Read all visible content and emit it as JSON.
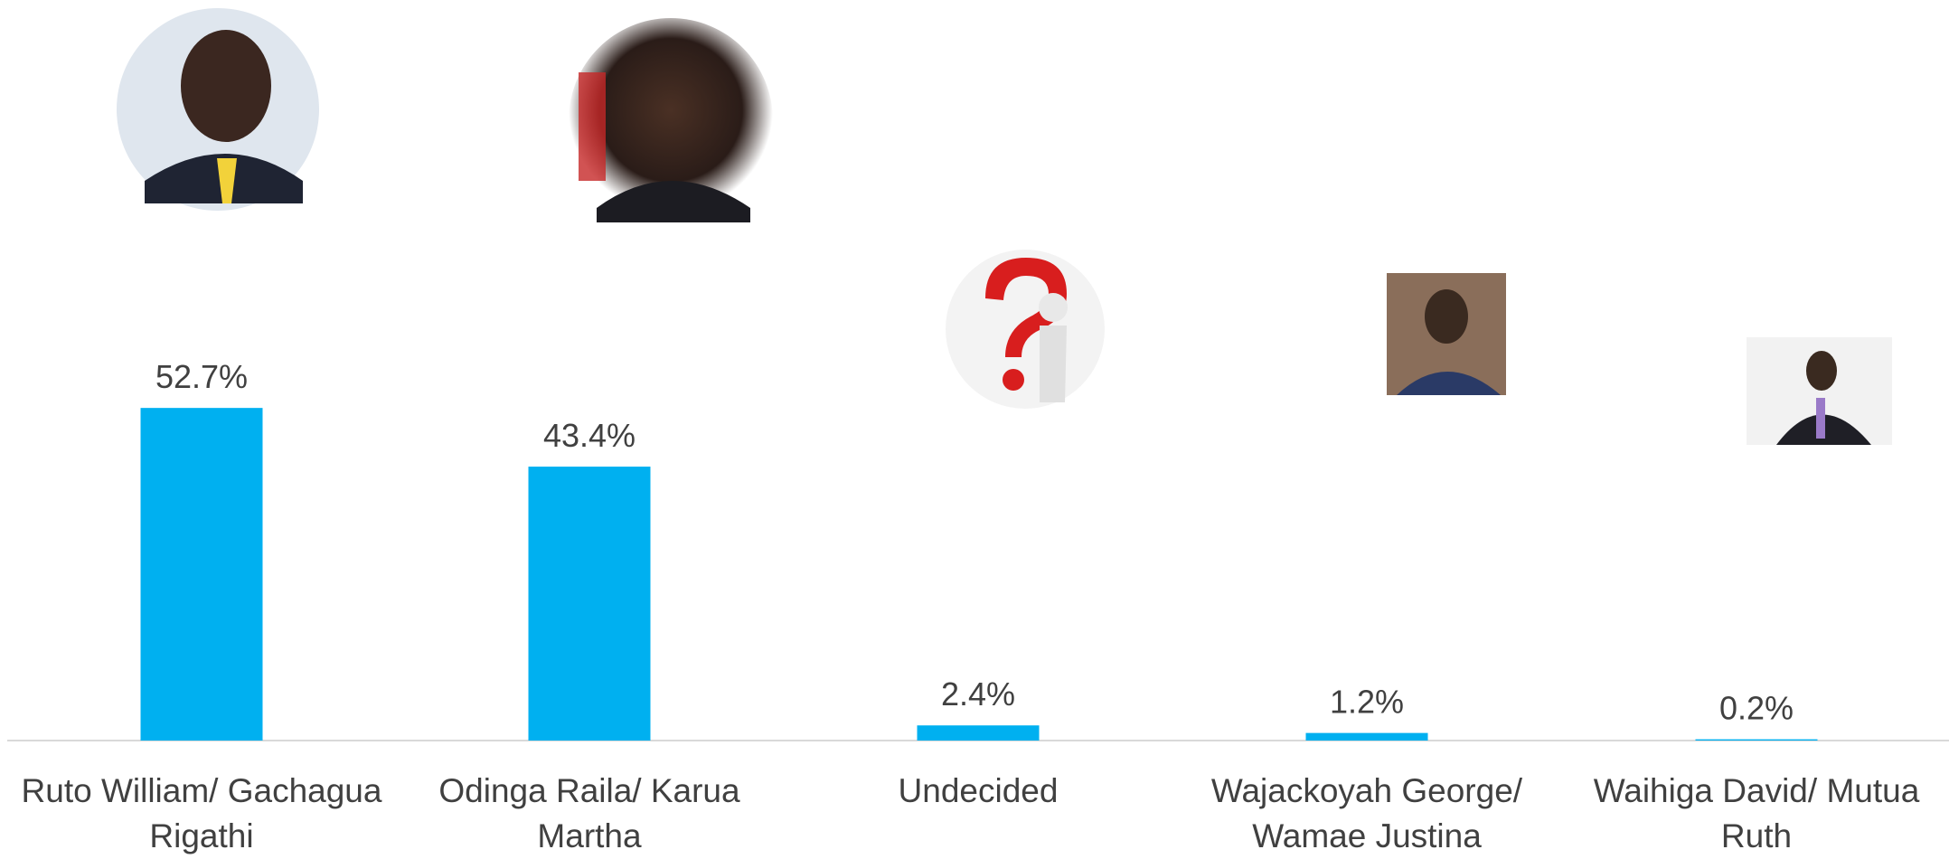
{
  "chart_data": {
    "type": "bar",
    "categories": [
      "Ruto William/ Gachagua Rigathi",
      "Odinga Raila/ Karua Martha",
      "Undecided",
      "Wajackoyah George/ Wamae Justina",
      "Waihiga David/ Mutua Ruth"
    ],
    "values": [
      52.7,
      43.4,
      2.4,
      1.2,
      0.2
    ],
    "value_labels": [
      "52.7%",
      "43.4%",
      "2.4%",
      "1.2%",
      "0.2%"
    ],
    "color": "#00b0f0"
  }
}
